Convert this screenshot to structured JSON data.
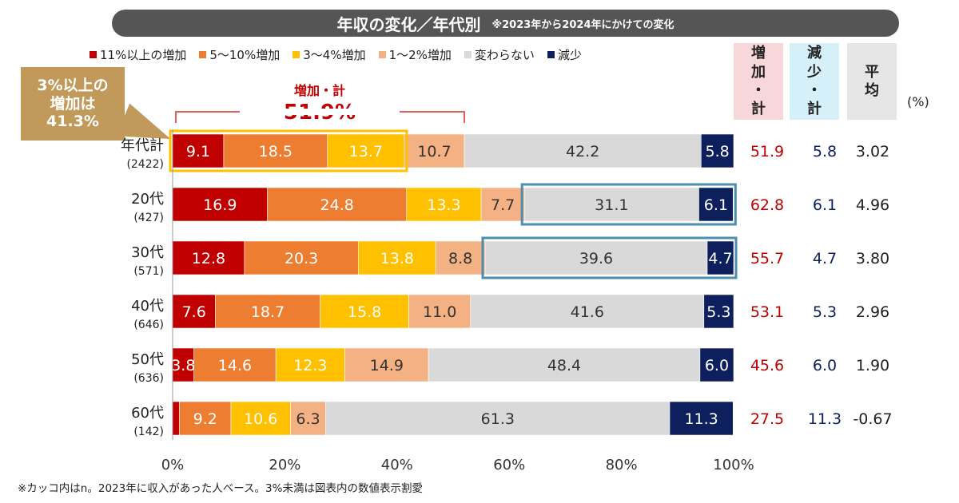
{
  "title": "年収の変化／年代別",
  "subtitle": "※2023年から2024年にかけての変化",
  "legend": [
    {
      "label": "11%以上の増加",
      "color": "#c00000"
    },
    {
      "label": "5～10%増加",
      "color": "#ed7d31"
    },
    {
      "label": "3～4%増加",
      "color": "#ffc000"
    },
    {
      "label": "1～2%増加",
      "color": "#f4b183"
    },
    {
      "label": "変わらない",
      "color": "#d9d9d9"
    },
    {
      "label": "減少",
      "color": "#0d1f5c"
    }
  ],
  "columns": {
    "increase": {
      "lines": [
        "増",
        "加",
        "・",
        "計"
      ],
      "bg": "#f8d7da",
      "color": "#c00000"
    },
    "decrease": {
      "lines": [
        "減",
        "少",
        "・",
        "計"
      ],
      "bg": "#d6f0fa",
      "color": "#0d1f5c"
    },
    "average": {
      "lines": [
        "平",
        "均"
      ],
      "bg": "#e6e6e6",
      "color": "#222222"
    },
    "unit": "(%)"
  },
  "callout": {
    "lines": [
      "3%以上の",
      "増加は",
      "41.3%"
    ]
  },
  "increase_total_label": {
    "line1": "増加・計",
    "line2": "51.9%"
  },
  "footnote": "※カッコ内はn。2023年に収入があった人ベース。3%未満は図表内の数値表示割愛",
  "chart_data": {
    "type": "bar",
    "orientation": "horizontal",
    "stacked": true,
    "categories": [
      "年代計",
      "20代",
      "30代",
      "40代",
      "50代",
      "60代"
    ],
    "sample_sizes": [
      "(2422)",
      "(427)",
      "(571)",
      "(646)",
      "(636)",
      "(142)"
    ],
    "series": [
      {
        "name": "11%以上の増加",
        "values": [
          9.1,
          16.9,
          12.8,
          7.6,
          3.8,
          1.2
        ],
        "labels": [
          "9.1",
          "16.9",
          "12.8",
          "7.6",
          "3.8",
          ""
        ]
      },
      {
        "name": "5～10%増加",
        "values": [
          18.5,
          24.8,
          20.3,
          18.7,
          14.6,
          9.2
        ],
        "labels": [
          "18.5",
          "24.8",
          "20.3",
          "18.7",
          "14.6",
          "9.2"
        ]
      },
      {
        "name": "3～4%増加",
        "values": [
          13.7,
          13.3,
          13.8,
          15.8,
          12.3,
          10.6
        ],
        "labels": [
          "13.7",
          "13.3",
          "13.8",
          "15.8",
          "12.3",
          "10.6"
        ]
      },
      {
        "name": "1～2%増加",
        "values": [
          10.7,
          7.7,
          8.8,
          11.0,
          14.9,
          6.3
        ],
        "labels": [
          "10.7",
          "7.7",
          "8.8",
          "11.0",
          "14.9",
          "6.3"
        ]
      },
      {
        "name": "変わらない",
        "values": [
          42.2,
          31.1,
          39.6,
          41.6,
          48.4,
          61.3
        ],
        "labels": [
          "42.2",
          "31.1",
          "39.6",
          "41.6",
          "48.4",
          "61.3"
        ]
      },
      {
        "name": "減少",
        "values": [
          5.8,
          6.1,
          4.7,
          5.3,
          6.0,
          11.3
        ],
        "labels": [
          "5.8",
          "6.1",
          "4.7",
          "5.3",
          "6.0",
          "11.3"
        ]
      }
    ],
    "increase_total": [
      "51.9",
      "62.8",
      "55.7",
      "53.1",
      "45.6",
      "27.5"
    ],
    "decrease_total": [
      "5.8",
      "6.1",
      "4.7",
      "5.3",
      "6.0",
      "11.3"
    ],
    "average": [
      "3.02",
      "4.96",
      "3.80",
      "2.96",
      "1.90",
      "-0.67"
    ],
    "xlim": [
      0,
      100
    ],
    "xticks": [
      "0%",
      "20%",
      "40%",
      "60%",
      "80%",
      "100%"
    ],
    "grid": false,
    "legend_position": "top",
    "highlights": [
      {
        "category": "年代計",
        "series_from": "11%以上の増加",
        "series_to": "3～4%増加",
        "color": "#ffc000"
      },
      {
        "category": "20代",
        "series_from": "変わらない",
        "series_to": "減少",
        "color": "#4a8fb0"
      },
      {
        "category": "30代",
        "series_from": "変わらない",
        "series_to": "減少",
        "color": "#4a8fb0"
      }
    ]
  }
}
